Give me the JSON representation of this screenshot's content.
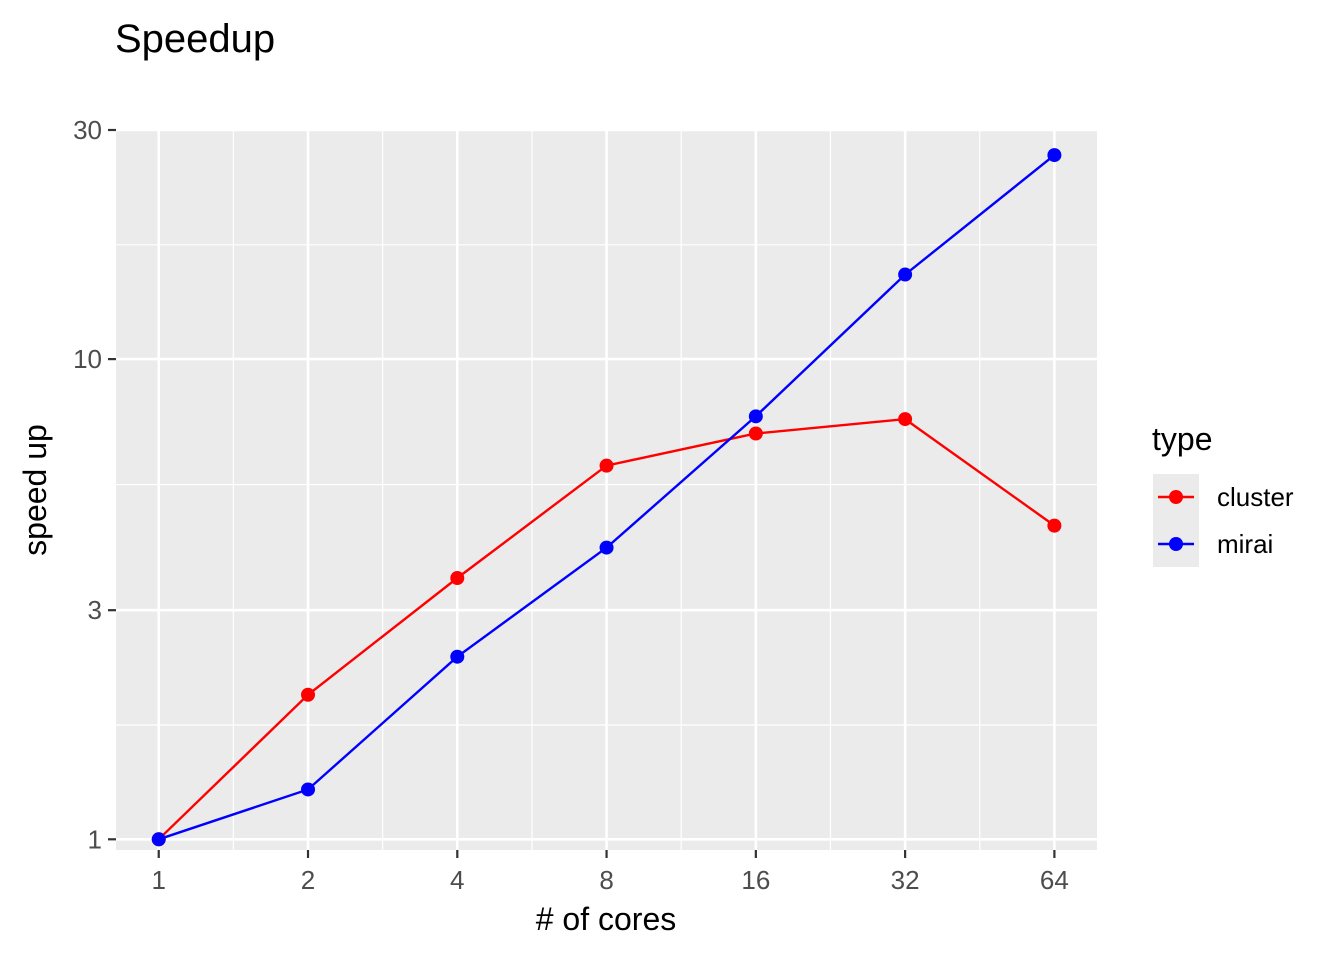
{
  "chart_data": {
    "type": "line",
    "title": "Speedup",
    "xlabel": "# of cores",
    "ylabel": "speed up",
    "x_scale": "log2",
    "y_scale": "log10",
    "x_ticks": [
      1,
      2,
      4,
      8,
      16,
      32,
      64
    ],
    "x_tick_labels": [
      "1",
      "2",
      "4",
      "8",
      "16",
      "32",
      "64"
    ],
    "y_ticks": [
      1,
      3,
      10,
      30
    ],
    "y_tick_labels": [
      "1",
      "3",
      "10",
      "30"
    ],
    "y_minor_ticks": [
      1.73,
      5.48,
      17.3
    ],
    "xlim": [
      0.82,
      78
    ],
    "ylim": [
      0.95,
      30
    ],
    "grid": true,
    "legend": {
      "title": "type",
      "placement": "right"
    },
    "series": [
      {
        "name": "cluster",
        "color": "#ff0000",
        "x": [
          1,
          2,
          4,
          8,
          16,
          32,
          64
        ],
        "y": [
          1.0,
          2.0,
          3.5,
          6.0,
          7.0,
          7.5,
          4.5
        ]
      },
      {
        "name": "mirai",
        "color": "#0000ff",
        "x": [
          1,
          2,
          4,
          8,
          16,
          32,
          64
        ],
        "y": [
          1.0,
          1.27,
          2.4,
          4.05,
          7.6,
          15.0,
          26.6
        ]
      }
    ]
  }
}
